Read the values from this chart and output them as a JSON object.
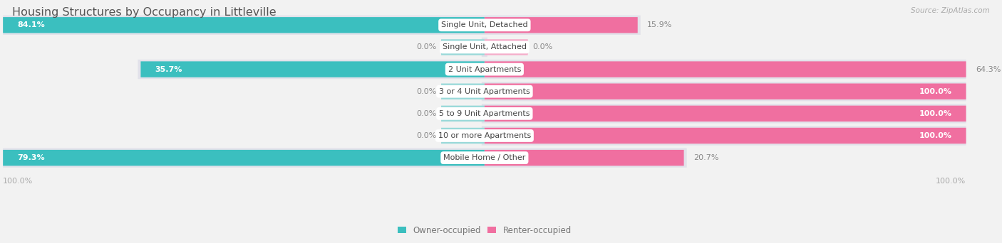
{
  "title": "Housing Structures by Occupancy in Littleville",
  "source": "Source: ZipAtlas.com",
  "categories": [
    "Single Unit, Detached",
    "Single Unit, Attached",
    "2 Unit Apartments",
    "3 or 4 Unit Apartments",
    "5 to 9 Unit Apartments",
    "10 or more Apartments",
    "Mobile Home / Other"
  ],
  "owner_pct": [
    84.1,
    0.0,
    35.7,
    0.0,
    0.0,
    0.0,
    79.3
  ],
  "renter_pct": [
    15.9,
    0.0,
    64.3,
    100.0,
    100.0,
    100.0,
    20.7
  ],
  "owner_color": "#3BBFBF",
  "renter_color": "#F06FA0",
  "owner_color_light": "#99D9D9",
  "renter_color_light": "#F5AECA",
  "row_bg_color": "#E2E2EA",
  "page_bg_color": "#F2F2F2",
  "title_color": "#555555",
  "label_color": "#777777",
  "source_color": "#AAAAAA",
  "pct_label_dark": "#888888",
  "pct_label_white": "#FFFFFF",
  "legend_left_label": "100.0%",
  "legend_right_label": "100.0%"
}
